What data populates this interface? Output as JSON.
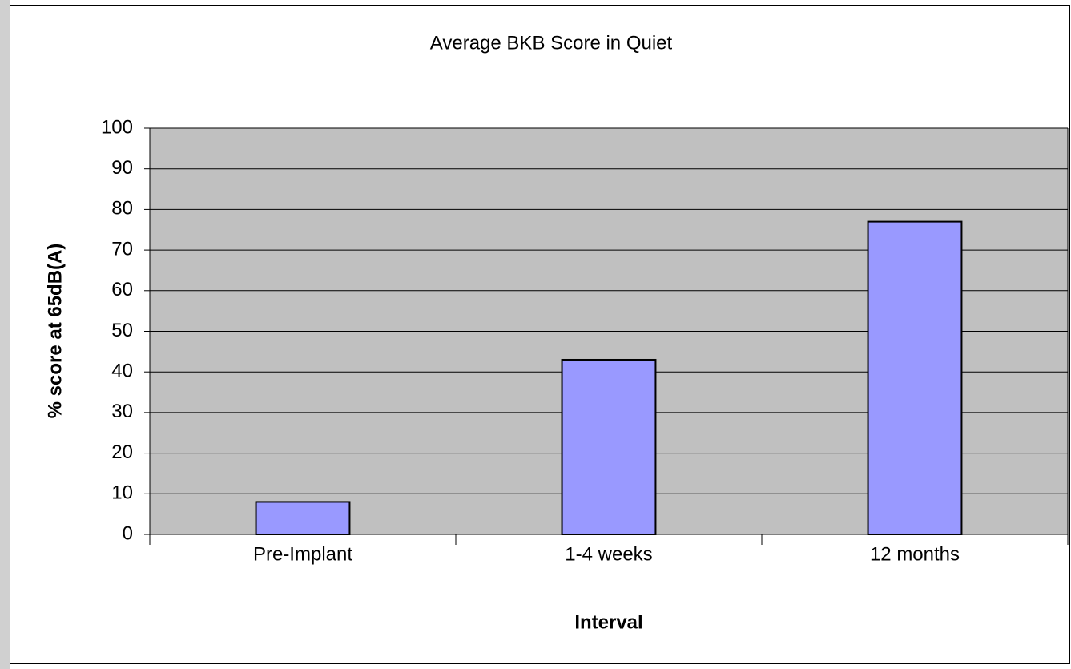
{
  "chart_data": {
    "type": "bar",
    "title": "Average BKB Score in Quiet",
    "x_label": "Interval",
    "y_label": "% score at 65dB(A)",
    "categories": [
      "Pre-Implant",
      "1-4 weeks",
      "12 months"
    ],
    "values": [
      8,
      43,
      77
    ],
    "color": "#9999ff",
    "ylim": [
      0,
      100
    ],
    "yticks": [
      0,
      10,
      20,
      30,
      40,
      50,
      60,
      70,
      80,
      90,
      100
    ],
    "grid": true
  }
}
